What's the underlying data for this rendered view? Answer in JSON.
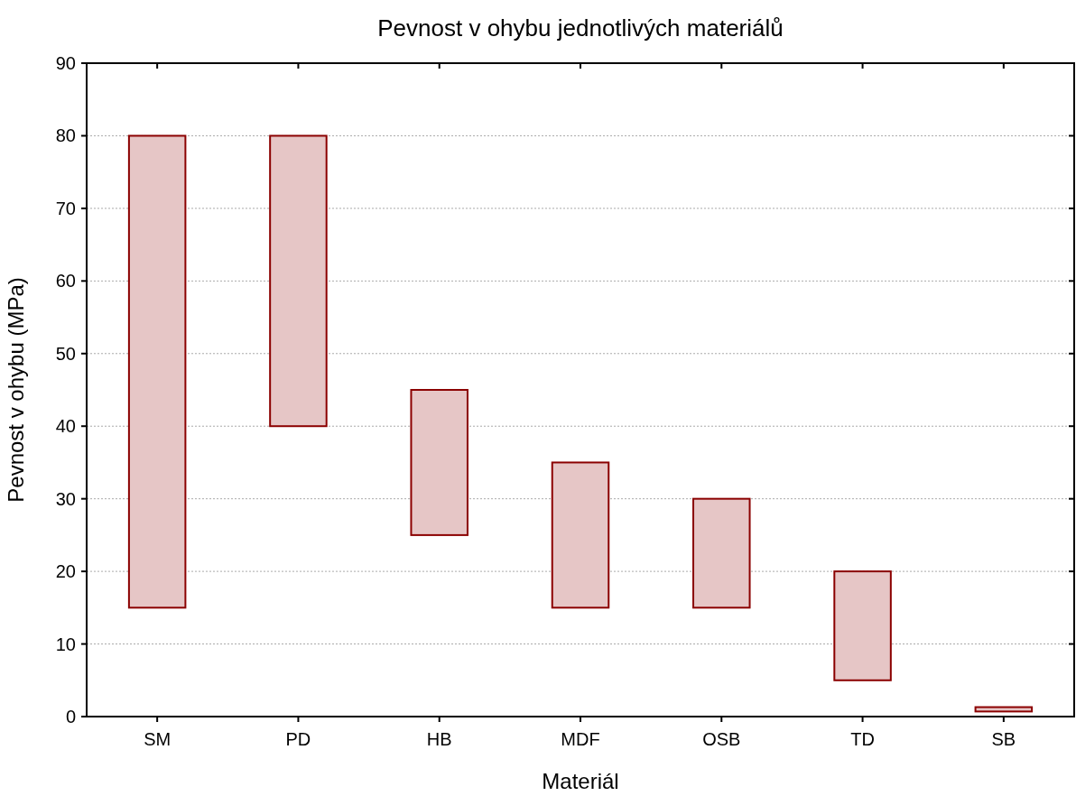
{
  "chart_data": {
    "type": "bar",
    "title": "Pevnost v ohybu jednotlivých materiálů",
    "xlabel": "Materiál",
    "ylabel": "Pevnost v ohybu (MPa)",
    "categories": [
      "SM",
      "PD",
      "HB",
      "MDF",
      "OSB",
      "TD",
      "SB"
    ],
    "series": [
      {
        "color": "#e6c6c6",
        "values": [
          65,
          40,
          20,
          20,
          15,
          15,
          0.6
        ],
        "base": [
          15,
          40,
          25,
          15,
          15,
          5,
          0.7
        ]
      }
    ],
    "ylim": [
      0,
      90
    ],
    "yticks": [
      0,
      10,
      20,
      30,
      40,
      50,
      60,
      70,
      80,
      90
    ],
    "grid": "y"
  }
}
